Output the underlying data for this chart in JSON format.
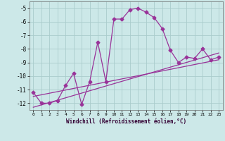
{
  "title": "",
  "xlabel": "Windchill (Refroidissement éolien,°C)",
  "ylabel": "",
  "bg_color": "#cce8e8",
  "grid_color": "#aacccc",
  "line_color": "#993399",
  "xlim": [
    -0.5,
    23.5
  ],
  "ylim": [
    -12.5,
    -4.5
  ],
  "yticks": [
    -12,
    -11,
    -10,
    -9,
    -8,
    -7,
    -6,
    -5
  ],
  "xticks": [
    0,
    1,
    2,
    3,
    4,
    5,
    6,
    7,
    8,
    9,
    10,
    11,
    12,
    13,
    14,
    15,
    16,
    17,
    18,
    19,
    20,
    21,
    22,
    23
  ],
  "main_x": [
    0,
    1,
    2,
    3,
    4,
    5,
    6,
    7,
    8,
    9,
    10,
    11,
    12,
    13,
    14,
    15,
    16,
    17,
    18,
    19,
    20,
    21,
    22,
    23
  ],
  "main_y": [
    -11.2,
    -12.0,
    -12.0,
    -11.8,
    -10.7,
    -9.8,
    -12.1,
    -10.4,
    -7.5,
    -10.4,
    -5.8,
    -5.8,
    -5.1,
    -5.0,
    -5.3,
    -5.7,
    -6.5,
    -8.1,
    -9.0,
    -8.6,
    -8.7,
    -8.0,
    -8.8,
    -8.6
  ],
  "trend1_x": [
    0,
    23
  ],
  "trend1_y": [
    -12.3,
    -8.3
  ],
  "trend2_x": [
    0,
    23
  ],
  "trend2_y": [
    -11.5,
    -8.8
  ]
}
